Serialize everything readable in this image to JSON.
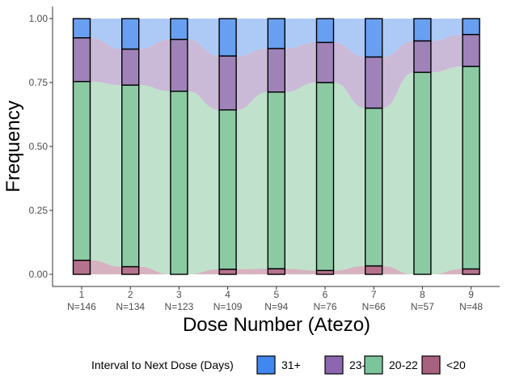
{
  "chart_data": {
    "type": "bar",
    "subtype": "stacked-proportion-alluvial",
    "xlabel": "Dose Number (Atezo)",
    "ylabel": "Frequency",
    "ylim": [
      0,
      1
    ],
    "yticks": [
      "0.00",
      "0.25",
      "0.50",
      "0.75",
      "1.00"
    ],
    "ytick_values": [
      0,
      0.25,
      0.5,
      0.75,
      1.0
    ],
    "categories": [
      "1",
      "2",
      "3",
      "4",
      "5",
      "6",
      "7",
      "8",
      "9"
    ],
    "category_counts": [
      "N=146",
      "N=134",
      "N=123",
      "N=109",
      "N=94",
      "N=76",
      "N=66",
      "N=57",
      "N=48"
    ],
    "legend": {
      "title": "Interval to Next Dose (Days)",
      "position": "bottom"
    },
    "series": [
      {
        "name": "<20",
        "color": "#b5728d",
        "values": [
          0.055,
          0.03,
          0.0,
          0.02,
          0.022,
          0.015,
          0.033,
          0.0,
          0.021
        ]
      },
      {
        "name": "20-22",
        "color": "#8ccaa3",
        "values": [
          0.699,
          0.71,
          0.716,
          0.623,
          0.691,
          0.735,
          0.617,
          0.79,
          0.792
        ]
      },
      {
        "name": "23-30",
        "color": "#9f82b8",
        "values": [
          0.171,
          0.141,
          0.203,
          0.211,
          0.17,
          0.157,
          0.2,
          0.123,
          0.125
        ]
      },
      {
        "name": "31+",
        "color": "#699ff0",
        "values": [
          0.075,
          0.119,
          0.081,
          0.146,
          0.117,
          0.093,
          0.15,
          0.087,
          0.062
        ]
      }
    ],
    "legend_order": [
      "31+",
      "23-30",
      "20-22",
      "<20"
    ],
    "legend_swatch_colors": {
      "31+": "#4287f0",
      "23-30": "#8c67b0",
      "20-22": "#7cc49a",
      "<20": "#a8627f"
    },
    "grid": false
  }
}
